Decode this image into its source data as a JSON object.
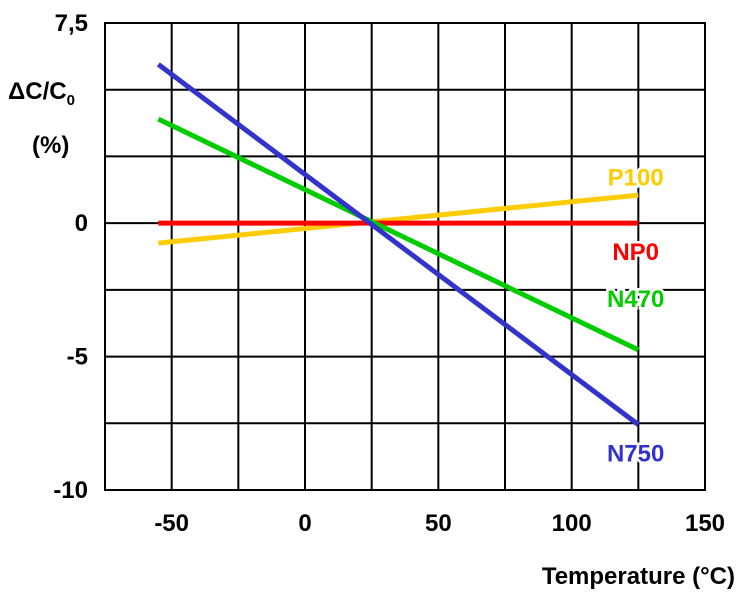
{
  "chart_data": {
    "type": "line",
    "title": "",
    "ylabel": "ΔC/C",
    "ylabel_subscript": "0",
    "ylabel_unit": "(%)",
    "xlabel": "Temperature (°C)",
    "xlim": [
      -75,
      150
    ],
    "ylim": [
      -10,
      7.5
    ],
    "x_tick_labels": [
      {
        "value": -50,
        "label": "-50"
      },
      {
        "value": 0,
        "label": "0"
      },
      {
        "value": 50,
        "label": "50"
      },
      {
        "value": 100,
        "label": "100"
      },
      {
        "value": 150,
        "label": "150"
      }
    ],
    "y_tick_labels": [
      {
        "value": 7.5,
        "label": "7,5"
      },
      {
        "value": 0,
        "label": "0"
      },
      {
        "value": -5,
        "label": "-5"
      },
      {
        "value": -10,
        "label": "-10"
      }
    ],
    "x_grid": [
      -75,
      -50,
      -25,
      0,
      25,
      50,
      75,
      100,
      125,
      150
    ],
    "y_grid": [
      7.5,
      5,
      2.5,
      0,
      -2.5,
      -5,
      -7.5,
      -10
    ],
    "grid": true,
    "series": [
      {
        "name": "P100",
        "color": "#FFCC00",
        "x": [
          -55,
          125
        ],
        "y": [
          -0.75,
          1.05
        ],
        "label_x": 124,
        "label_y": 1.75
      },
      {
        "name": "NP0",
        "color": "#FF0000",
        "x": [
          -55,
          125
        ],
        "y": [
          0,
          0
        ],
        "label_x": 124,
        "label_y": -1.05
      },
      {
        "name": "N470",
        "color": "#00CC00",
        "x": [
          -55,
          125
        ],
        "y": [
          3.9,
          -4.75
        ],
        "label_x": 124,
        "label_y": -2.8
      },
      {
        "name": "N750",
        "color": "#3333CC",
        "x": [
          -55,
          125
        ],
        "y": [
          5.95,
          -7.55
        ],
        "label_x": 124,
        "label_y": -8.6
      }
    ]
  }
}
